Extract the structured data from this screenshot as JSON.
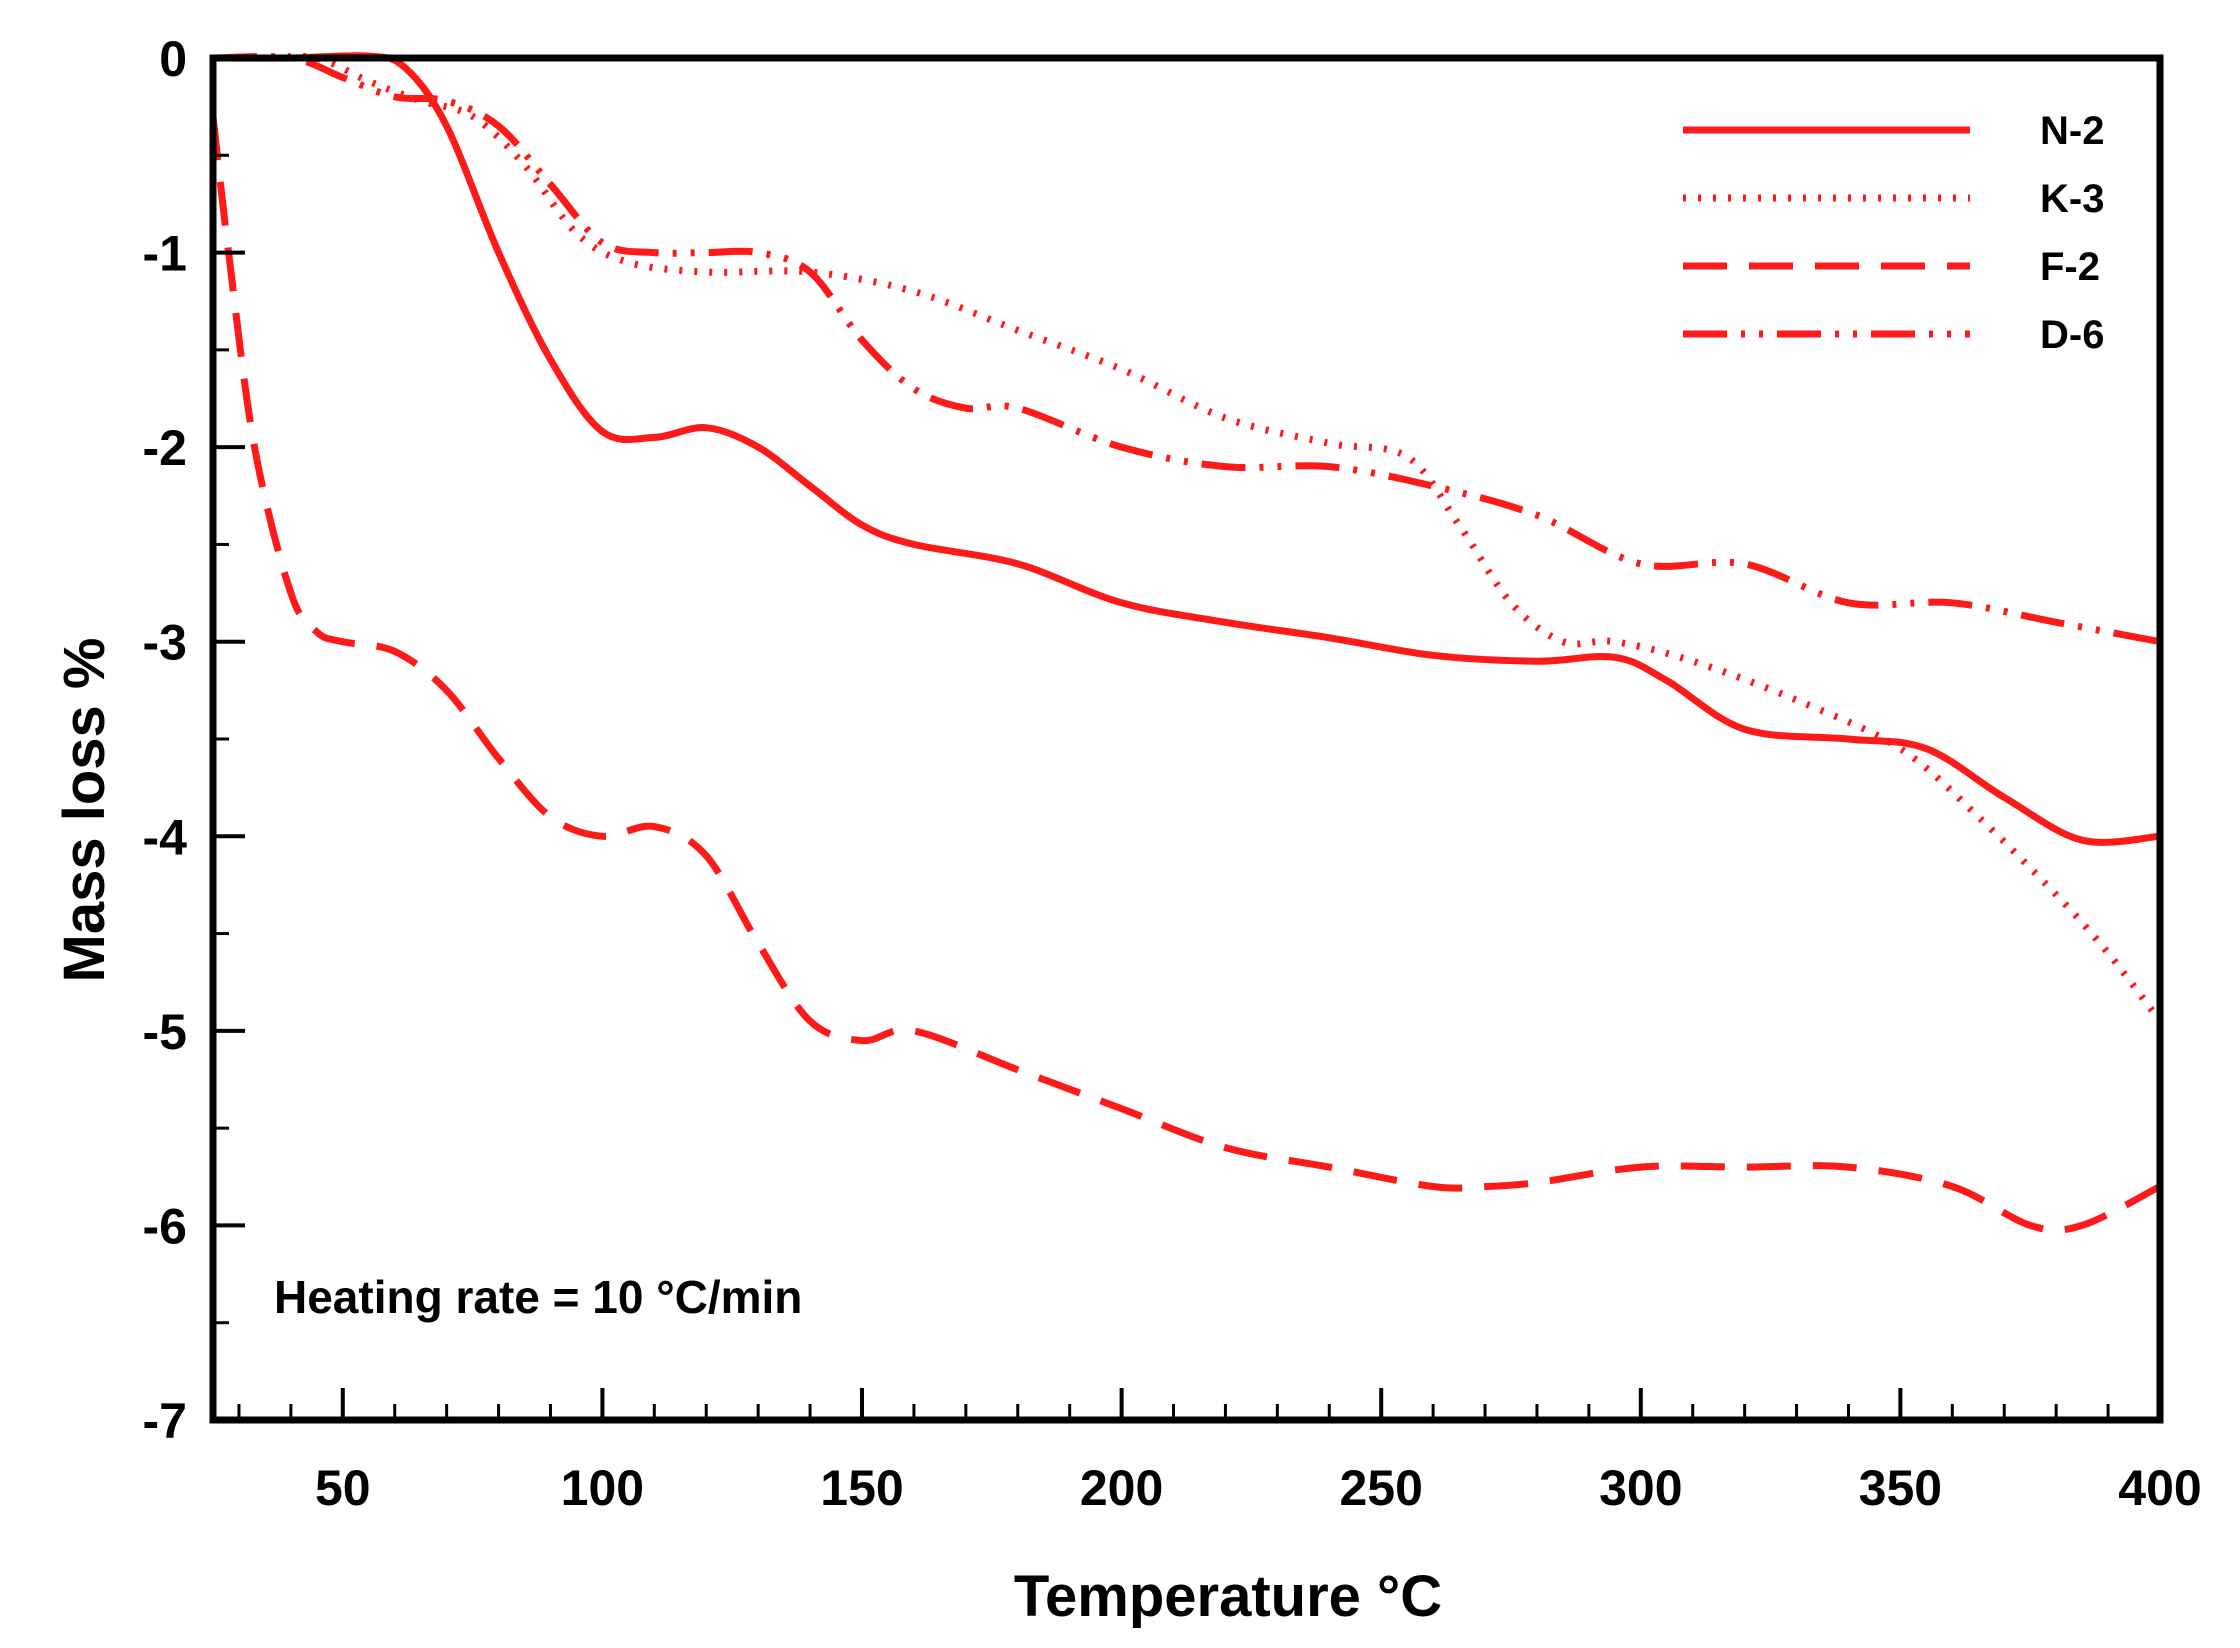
{
  "chart_data": {
    "type": "line",
    "title": "",
    "xlabel": "Temperature °C",
    "ylabel": "Mass loss %",
    "xlim": [
      25,
      400
    ],
    "ylim": [
      -7,
      0
    ],
    "x_ticks": [
      50,
      100,
      150,
      200,
      250,
      300,
      350,
      400
    ],
    "x_tick_labels": [
      "50",
      "100",
      "150",
      "200",
      "250",
      "300",
      "350",
      "400"
    ],
    "x_minor_step": 10,
    "y_ticks": [
      0,
      -1,
      -2,
      -3,
      -4,
      -5,
      -6,
      -7
    ],
    "y_tick_labels": [
      "0",
      "-1",
      "-2",
      "-3",
      "-4",
      "-5",
      "-6",
      "-7"
    ],
    "y_minor_step": 0.5,
    "grid": false,
    "legend_position": "top-right",
    "line_color": "#ff1a1a",
    "annotation": "Heating rate = 10 °C/min",
    "series": [
      {
        "name": "N-2",
        "style": "solid",
        "x": [
          25,
          40,
          55,
          62,
          70,
          80,
          90,
          100,
          110,
          120,
          130,
          140,
          150,
          160,
          180,
          200,
          220,
          240,
          260,
          280,
          295,
          305,
          320,
          340,
          355,
          370,
          385,
          400
        ],
        "y": [
          0,
          0,
          0.01,
          -0.05,
          -0.35,
          -1.0,
          -1.55,
          -1.92,
          -1.95,
          -1.9,
          -2.0,
          -2.2,
          -2.4,
          -2.5,
          -2.6,
          -2.8,
          -2.9,
          -2.98,
          -3.07,
          -3.1,
          -3.08,
          -3.2,
          -3.45,
          -3.5,
          -3.55,
          -3.8,
          -4.02,
          -4.0
        ]
      },
      {
        "name": "K-3",
        "style": "dotted",
        "x": [
          25,
          35,
          45,
          55,
          65,
          75,
          85,
          95,
          105,
          120,
          140,
          160,
          180,
          200,
          220,
          240,
          255,
          265,
          275,
          285,
          295,
          310,
          330,
          350,
          365,
          380,
          390,
          400
        ],
        "y": [
          0,
          0,
          0,
          -0.12,
          -0.22,
          -0.3,
          -0.55,
          -0.9,
          -1.05,
          -1.1,
          -1.1,
          -1.2,
          -1.4,
          -1.6,
          -1.85,
          -1.98,
          -2.05,
          -2.4,
          -2.8,
          -3.0,
          -3.0,
          -3.1,
          -3.3,
          -3.55,
          -3.9,
          -4.3,
          -4.6,
          -4.95
        ]
      },
      {
        "name": "F-2",
        "style": "dashed",
        "x": [
          25,
          28,
          33,
          40,
          45,
          50,
          60,
          70,
          80,
          90,
          100,
          110,
          120,
          130,
          140,
          150,
          160,
          180,
          200,
          220,
          240,
          260,
          270,
          280,
          300,
          320,
          340,
          360,
          375,
          385,
          400
        ],
        "y": [
          -0.3,
          -1.0,
          -2.0,
          -2.75,
          -2.95,
          -3.0,
          -3.05,
          -3.25,
          -3.6,
          -3.9,
          -4.0,
          -3.95,
          -4.1,
          -4.55,
          -4.95,
          -5.05,
          -5.0,
          -5.2,
          -5.4,
          -5.6,
          -5.7,
          -5.8,
          -5.8,
          -5.78,
          -5.7,
          -5.7,
          -5.7,
          -5.8,
          -6.0,
          -6.0,
          -5.8
        ]
      },
      {
        "name": "D-6",
        "style": "dash-dot-dot",
        "x": [
          25,
          40,
          50,
          60,
          70,
          80,
          90,
          100,
          110,
          120,
          130,
          140,
          150,
          160,
          170,
          180,
          200,
          220,
          240,
          260,
          280,
          300,
          320,
          340,
          360,
          380,
          400
        ],
        "y": [
          0,
          0,
          -0.1,
          -0.2,
          -0.22,
          -0.35,
          -0.65,
          -0.95,
          -1.0,
          -1.0,
          -1.0,
          -1.1,
          -1.45,
          -1.7,
          -1.8,
          -1.8,
          -2.0,
          -2.1,
          -2.1,
          -2.2,
          -2.35,
          -2.6,
          -2.6,
          -2.8,
          -2.8,
          -2.9,
          -3.0
        ]
      }
    ]
  }
}
